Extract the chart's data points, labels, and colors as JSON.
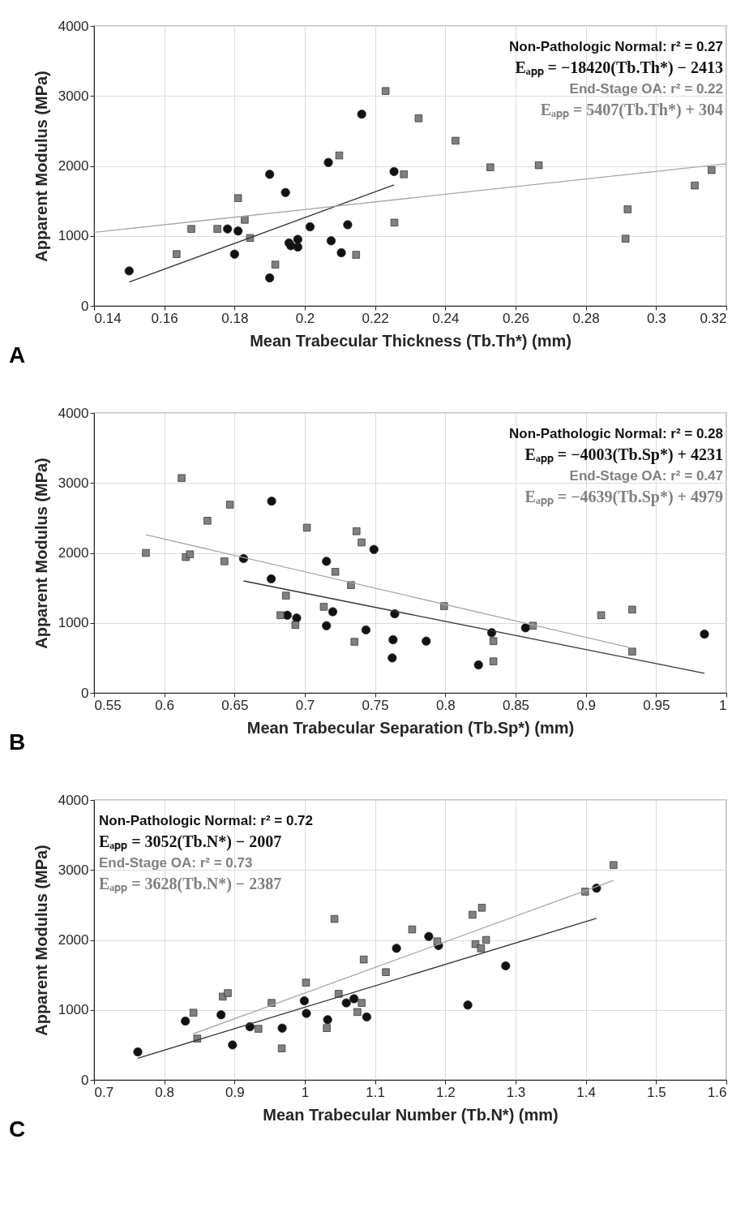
{
  "chart_data": [
    {
      "type": "scatter",
      "xlabel": "Mean Trabecular Thickness (Tb.Th*) (mm)",
      "ylabel": "Apparent Modulus (MPa)",
      "xlim": [
        0.14,
        0.32
      ],
      "xticks": [
        0.14,
        0.16,
        0.18,
        0.2,
        0.22,
        0.24,
        0.26,
        0.28,
        0.3,
        0.32
      ],
      "ylim": [
        0,
        4000
      ],
      "yticks": [
        0,
        1000,
        2000,
        3000,
        4000
      ],
      "grid": true,
      "legend": "top right",
      "annotations": [
        "A",
        "Eₐₚₚ = −18420(Tb.Th*) − 2413",
        "Eₐₚₚ = 5407(Tb.Th*) + 304"
      ],
      "series": [
        {
          "name": "Non-Pathologic Normal: r² = 0.27",
          "color": "#111111",
          "marker": "circle",
          "x": [
            0.15,
            0.178,
            0.18,
            0.181,
            0.19,
            0.19,
            0.1945,
            0.1955,
            0.196,
            0.198,
            0.198,
            0.2015,
            0.2067,
            0.2075,
            0.2104,
            0.2122,
            0.2162,
            0.2254
          ],
          "values": [
            500,
            1100,
            740,
            1070,
            1880,
            400,
            1620,
            900,
            860,
            840,
            950,
            1130,
            2050,
            930,
            760,
            1160,
            2740,
            1920
          ]
        },
        {
          "name": "End-Stage OA: r² = 0.22",
          "color": "#808080",
          "marker": "square",
          "x": [
            0.1635,
            0.1677,
            0.1751,
            0.181,
            0.1829,
            0.1844,
            0.1916,
            0.2146,
            0.2098,
            0.223,
            0.2255,
            0.2282,
            0.2324,
            0.2429,
            0.2528,
            0.2666,
            0.2919,
            0.2913,
            0.311,
            0.3158
          ],
          "values": [
            740,
            1100,
            1100,
            1540,
            1230,
            970,
            590,
            730,
            2150,
            3070,
            1190,
            1880,
            2680,
            2360,
            1980,
            2010,
            1380,
            960,
            1720,
            1940
          ]
        },
        {
          "type": "line",
          "color": "#333333",
          "x": [
            0.15,
            0.2254
          ],
          "values": [
            340,
            1730
          ]
        },
        {
          "type": "line",
          "color": "#a6a6a6",
          "x": [
            0.14,
            0.32
          ],
          "values": [
            1050,
            2030
          ]
        }
      ]
    },
    {
      "type": "scatter",
      "xlabel": "Mean Trabecular Separation (Tb.Sp*) (mm)",
      "ylabel": "Apparent Modulus (MPa)",
      "xlim": [
        0.55,
        1
      ],
      "xticks": [
        0.55,
        0.6,
        0.65,
        0.7,
        0.75,
        0.8,
        0.85,
        0.9,
        0.95,
        1
      ],
      "ylim": [
        0,
        4000
      ],
      "yticks": [
        0,
        1000,
        2000,
        3000,
        4000
      ],
      "grid": true,
      "legend": "top right",
      "annotations": [
        "B",
        "Eₐₚₚ = −4003(Tb.Sp*) + 4231",
        "Eₐₚₚ = −4639(Tb.Sp*) + 4979"
      ],
      "series": [
        {
          "name": "Non-Pathologic Normal: r² = 0.28",
          "color": "#111111",
          "marker": "circle",
          "x": [
            0.6564,
            0.6764,
            0.6761,
            0.6875,
            0.6942,
            0.7154,
            0.7154,
            0.7199,
            0.7435,
            0.7492,
            0.764,
            0.7628,
            0.7622,
            0.7864,
            0.8236,
            0.833,
            0.8571,
            0.9844
          ],
          "values": [
            1920,
            2740,
            1630,
            1110,
            1070,
            1880,
            960,
            1160,
            900,
            2050,
            1130,
            760,
            500,
            740,
            400,
            860,
            930,
            840
          ]
        },
        {
          "name": "End-Stage OA: r² = 0.47",
          "color": "#808080",
          "marker": "square",
          "x": [
            0.5869,
            0.6123,
            0.6153,
            0.6183,
            0.6307,
            0.6428,
            0.6467,
            0.6827,
            0.6866,
            0.6933,
            0.7015,
            0.7135,
            0.7217,
            0.7329,
            0.7353,
            0.7368,
            0.7404,
            0.7991,
            0.8342,
            0.8342,
            0.8623,
            0.9109,
            0.933,
            0.933
          ],
          "values": [
            2000,
            3070,
            1940,
            1980,
            2460,
            1880,
            2690,
            1110,
            1390,
            970,
            2360,
            1230,
            1730,
            1540,
            730,
            2310,
            2150,
            1240,
            740,
            450,
            960,
            1110,
            1190,
            590
          ]
        },
        {
          "type": "line",
          "color": "#333333",
          "x": [
            0.6564,
            0.9844
          ],
          "values": [
            1600,
            280
          ]
        },
        {
          "type": "line",
          "color": "#a6a6a6",
          "x": [
            0.5869,
            0.933
          ],
          "values": [
            2260,
            640
          ]
        }
      ]
    },
    {
      "type": "scatter",
      "xlabel": "Mean Trabecular Number (Tb.N*) (mm)",
      "ylabel": "Apparent Modulus (MPa)",
      "xlim": [
        0.7,
        1.6
      ],
      "xticks": [
        0.7,
        0.8,
        0.9,
        1,
        1.1,
        1.2,
        1.3,
        1.4,
        1.5,
        1.6
      ],
      "ylim": [
        0,
        4000
      ],
      "yticks": [
        0,
        1000,
        2000,
        3000,
        4000
      ],
      "grid": true,
      "legend": "top left",
      "annotations": [
        "C",
        "Eₐₚₚ = 3052(Tb.N*) − 2007",
        "Eₐₚₚ = 3628(Tb.N*) − 2387"
      ],
      "series": [
        {
          "name": "Non-Pathologic Normal: r² = 0.72",
          "color": "#111111",
          "marker": "circle",
          "x": [
            0.7623,
            0.83,
            0.8808,
            0.8971,
            0.9219,
            0.9678,
            0.9993,
            1.0023,
            1.0325,
            1.0591,
            1.07,
            1.0881,
            1.1305,
            1.1764,
            1.1903,
            1.232,
            1.2859,
            1.4152
          ],
          "values": [
            400,
            840,
            930,
            500,
            760,
            740,
            1130,
            950,
            860,
            1100,
            1160,
            900,
            1880,
            2050,
            1920,
            1070,
            1630,
            2740
          ]
        },
        {
          "name": "End-Stage OA: r² = 0.73",
          "color": "#808080",
          "marker": "square",
          "x": [
            0.8415,
            0.8469,
            0.8832,
            0.8904,
            0.934,
            0.9527,
            0.9672,
            1.0017,
            1.0313,
            1.0422,
            1.0482,
            1.0749,
            1.0809,
            1.0839,
            1.1154,
            1.1528,
            1.1885,
            1.2387,
            1.2429,
            1.2508,
            1.252,
            1.258,
            1.3989,
            1.4394
          ],
          "values": [
            960,
            590,
            1190,
            1240,
            730,
            1100,
            450,
            1390,
            740,
            2300,
            1230,
            970,
            1100,
            1720,
            1540,
            2150,
            1980,
            2360,
            1940,
            1880,
            2460,
            2000,
            2690,
            3070
          ]
        },
        {
          "type": "line",
          "color": "#333333",
          "x": [
            0.7623,
            1.4152
          ],
          "values": [
            310,
            2310
          ]
        },
        {
          "type": "line",
          "color": "#a6a6a6",
          "x": [
            0.8415,
            1.4394
          ],
          "values": [
            660,
            2850
          ]
        }
      ]
    }
  ]
}
